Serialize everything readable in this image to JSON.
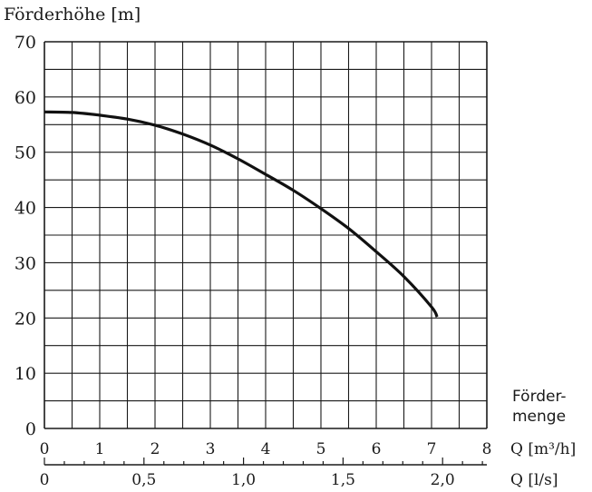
{
  "chart_data": {
    "type": "line",
    "ylabel": "Förderhöhe [m]",
    "xlabel": "Förder- menge",
    "xlabel_lines": [
      "Förder-",
      "menge"
    ],
    "ylim": [
      0,
      70
    ],
    "y_ticks": [
      "0",
      "10",
      "20",
      "30",
      "40",
      "50",
      "60",
      "70"
    ],
    "y_tick_values": [
      0,
      10,
      20,
      30,
      40,
      50,
      60,
      70
    ],
    "xlim": [
      0,
      8
    ],
    "x_ticks": [
      "0",
      "1",
      "2",
      "3",
      "4",
      "5",
      "6",
      "7",
      "8"
    ],
    "x_tick_values": [
      0,
      1,
      2,
      3,
      4,
      5,
      6,
      7,
      8
    ],
    "x_unit": "Q [m³/h]",
    "x2_ticks": [
      "0",
      "0,5",
      "1,0",
      "1,5",
      "2,0"
    ],
    "x2_tick_values": [
      0,
      0.5,
      1.0,
      1.5,
      2.0
    ],
    "x2_unit": "Q [l/s]",
    "grid": true,
    "series": [
      {
        "x": [
          0,
          0.5,
          1,
          1.5,
          2,
          2.5,
          3,
          3.5,
          4,
          4.5,
          5,
          5.5,
          6,
          6.5,
          7,
          7.1
        ],
        "values": [
          57.3,
          57.2,
          56.7,
          56.0,
          54.9,
          53.3,
          51.3,
          48.8,
          46.0,
          43.1,
          39.8,
          36.2,
          32.0,
          27.5,
          22.0,
          20.2
        ]
      }
    ]
  }
}
